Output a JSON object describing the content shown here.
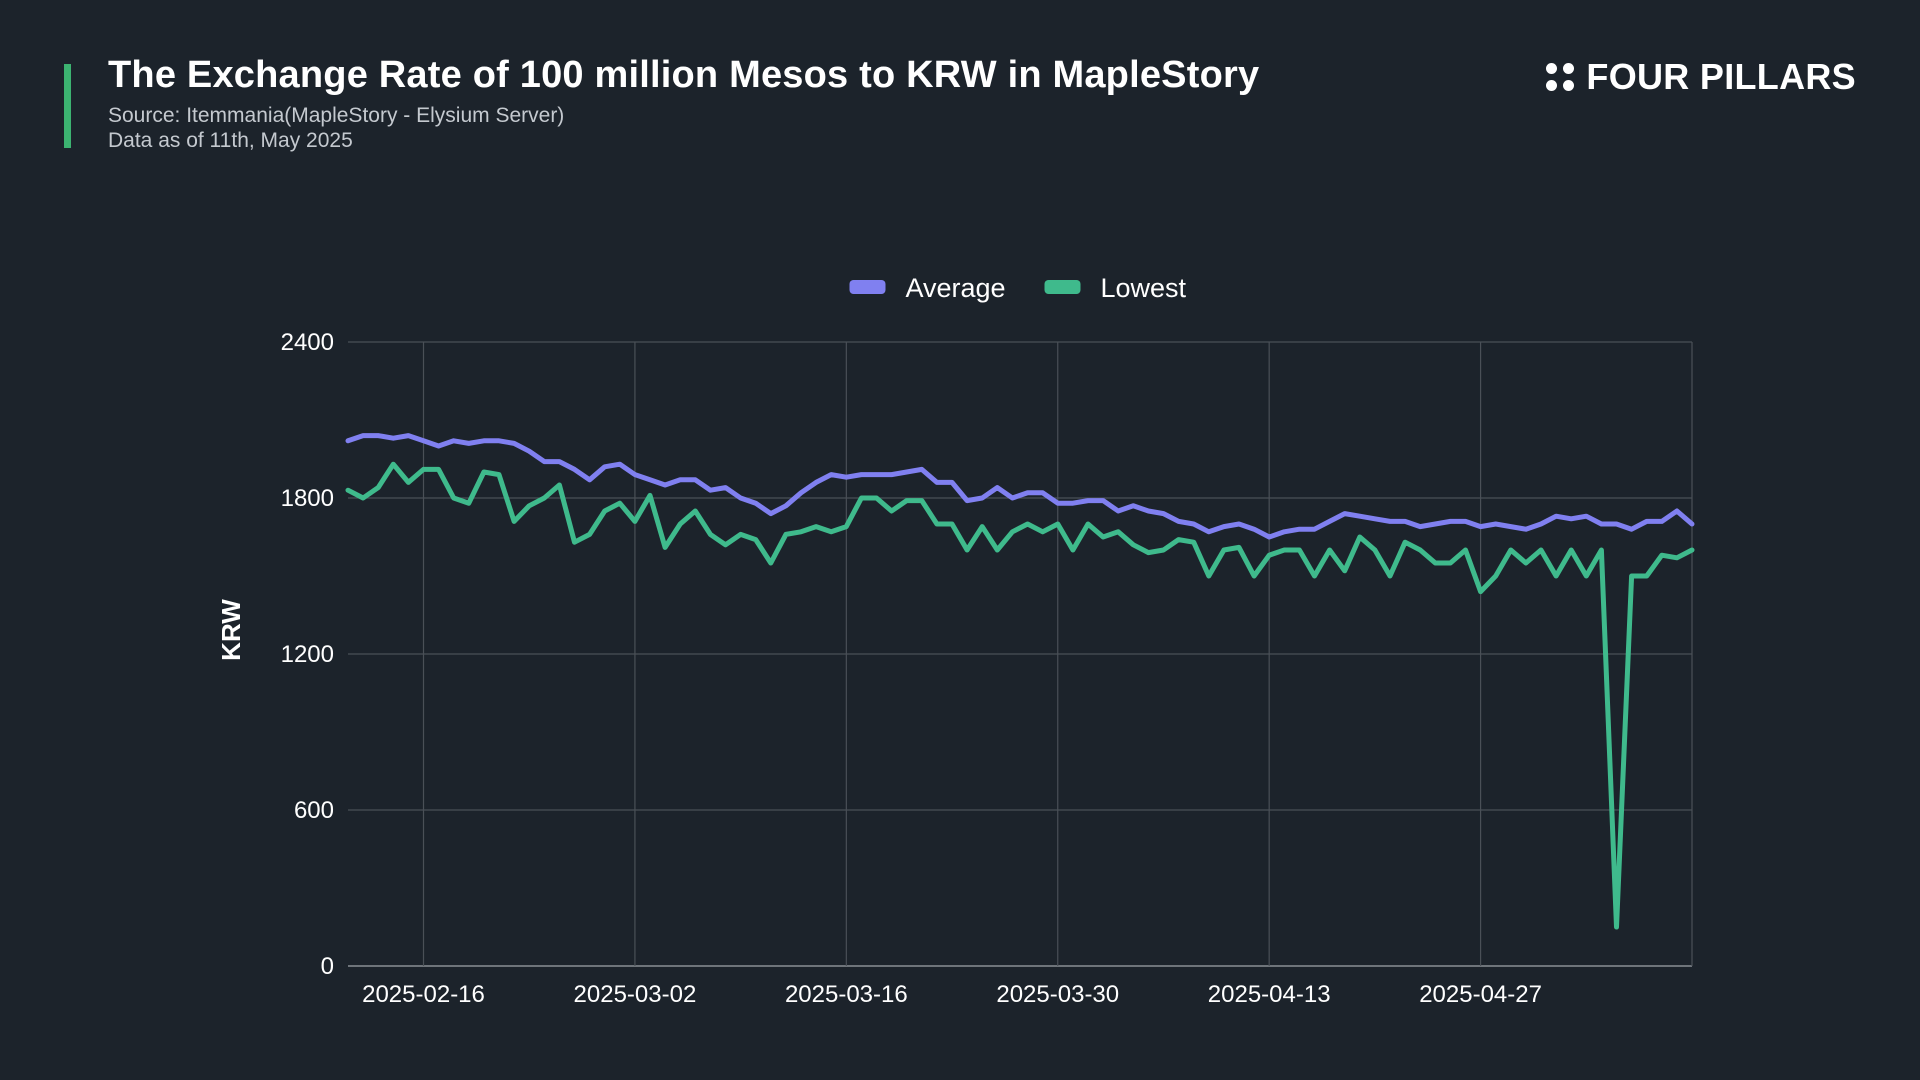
{
  "header": {
    "title": "The Exchange Rate of 100 million Mesos to KRW in MapleStory",
    "source": "Source: Itemmania(MapleStory - Elysium Server)",
    "as_of": "Data as of 11th, May 2025"
  },
  "brand": {
    "name": "FOUR PILLARS"
  },
  "colors": {
    "background": "#1c232b",
    "accent": "#3cb371",
    "average": "#8080f0",
    "lowest": "#3fba8c",
    "grid": "#4a5057"
  },
  "chart_data": {
    "type": "line",
    "title": "The Exchange Rate of 100 million Mesos to KRW in MapleStory",
    "xlabel": "",
    "ylabel": "KRW",
    "ylim": [
      0,
      2400
    ],
    "yticks": [
      0,
      600,
      1200,
      1800,
      2400
    ],
    "xticks": [
      "2025-02-16",
      "2025-03-02",
      "2025-03-16",
      "2025-03-30",
      "2025-04-13",
      "2025-04-27"
    ],
    "x_start": "2025-02-11",
    "x_end": "2025-05-11",
    "grid": true,
    "legend_position": "top-center",
    "series": [
      {
        "name": "Average",
        "color": "#8080f0",
        "values": [
          2020,
          2040,
          2040,
          2030,
          2040,
          2020,
          2000,
          2020,
          2010,
          2020,
          2020,
          2010,
          1980,
          1940,
          1940,
          1910,
          1870,
          1920,
          1930,
          1890,
          1870,
          1850,
          1870,
          1870,
          1830,
          1840,
          1800,
          1780,
          1740,
          1770,
          1820,
          1860,
          1890,
          1880,
          1890,
          1890,
          1890,
          1900,
          1910,
          1860,
          1860,
          1790,
          1800,
          1840,
          1800,
          1820,
          1820,
          1780,
          1780,
          1790,
          1790,
          1750,
          1770,
          1750,
          1740,
          1710,
          1700,
          1670,
          1690,
          1700,
          1680,
          1650,
          1670,
          1680,
          1680,
          1710,
          1740,
          1730,
          1720,
          1710,
          1710,
          1690,
          1700,
          1710,
          1710,
          1690,
          1700,
          1690,
          1680,
          1700,
          1730,
          1720,
          1730,
          1700,
          1700,
          1680,
          1710,
          1710,
          1750,
          1700
        ]
      },
      {
        "name": "Lowest",
        "color": "#3fba8c",
        "values": [
          1830,
          1800,
          1840,
          1930,
          1860,
          1910,
          1910,
          1800,
          1780,
          1900,
          1890,
          1710,
          1770,
          1800,
          1850,
          1630,
          1660,
          1750,
          1780,
          1710,
          1810,
          1610,
          1700,
          1750,
          1660,
          1620,
          1660,
          1640,
          1550,
          1660,
          1670,
          1690,
          1670,
          1690,
          1800,
          1800,
          1750,
          1790,
          1790,
          1700,
          1700,
          1600,
          1690,
          1600,
          1670,
          1700,
          1670,
          1700,
          1600,
          1700,
          1650,
          1670,
          1620,
          1590,
          1600,
          1640,
          1630,
          1500,
          1600,
          1610,
          1500,
          1580,
          1600,
          1600,
          1500,
          1600,
          1520,
          1650,
          1600,
          1500,
          1630,
          1600,
          1550,
          1550,
          1600,
          1440,
          1500,
          1600,
          1550,
          1600,
          1500,
          1600,
          1500,
          1600,
          150,
          1500,
          1500,
          1580,
          1570,
          1600
        ]
      }
    ]
  }
}
